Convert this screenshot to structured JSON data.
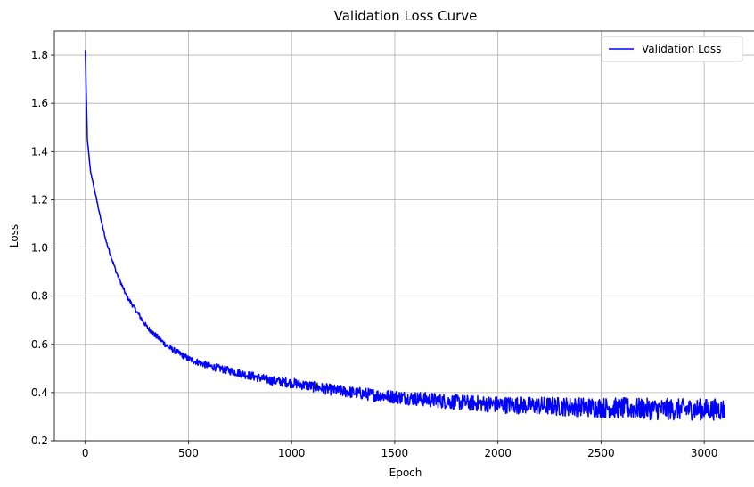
{
  "chart_data": {
    "type": "line",
    "title": "Validation Loss Curve",
    "xlabel": "Epoch",
    "ylabel": "Loss",
    "xlim": [
      -150,
      3250
    ],
    "ylim": [
      0.2,
      1.9
    ],
    "xticks": [
      0,
      500,
      1000,
      1500,
      2000,
      2500,
      3000
    ],
    "yticks": [
      0.2,
      0.4,
      0.6,
      0.8,
      1.0,
      1.2,
      1.4,
      1.6,
      1.8
    ],
    "grid": true,
    "legend": "top-right",
    "series": [
      {
        "name": "Validation Loss",
        "color": "#0000ff",
        "x": [
          0,
          10,
          25,
          50,
          75,
          100,
          150,
          200,
          300,
          400,
          500,
          600,
          700,
          800,
          900,
          1000,
          1200,
          1400,
          1600,
          1800,
          2000,
          2200,
          2400,
          2600,
          2800,
          3000,
          3100
        ],
        "y": [
          1.82,
          1.45,
          1.32,
          1.22,
          1.12,
          1.03,
          0.9,
          0.8,
          0.67,
          0.59,
          0.54,
          0.51,
          0.49,
          0.47,
          0.45,
          0.44,
          0.41,
          0.39,
          0.375,
          0.36,
          0.35,
          0.345,
          0.34,
          0.335,
          0.33,
          0.33,
          0.33
        ]
      }
    ]
  }
}
